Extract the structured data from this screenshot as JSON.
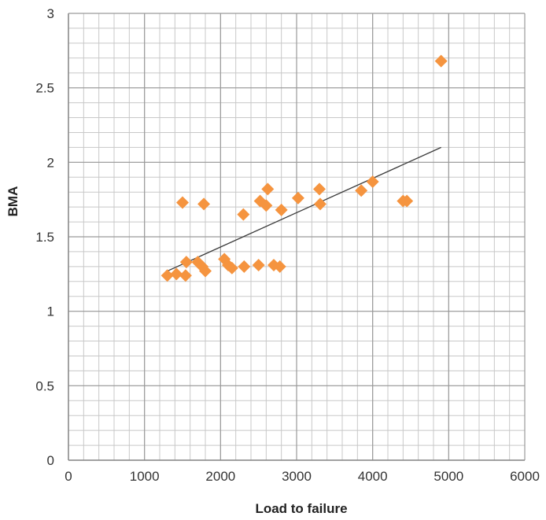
{
  "chart_data": {
    "type": "scatter",
    "title": "",
    "xlabel": "Load to failure",
    "ylabel": "BMA",
    "xlim": [
      0,
      6000
    ],
    "ylim": [
      0,
      3
    ],
    "x_ticks": [
      "0",
      "1000",
      "2000",
      "3000",
      "4000",
      "5000",
      "6000"
    ],
    "y_ticks": [
      "0",
      "0.5",
      "1",
      "1.5",
      "2",
      "2.5",
      "3"
    ],
    "grid": true,
    "legend": "none",
    "marker": "diamond",
    "colors": {
      "points": "#f5943f",
      "trendline": "#3a3a3a",
      "grid": "#c8c8c8"
    },
    "series": [
      {
        "points": [
          [
            1300,
            1.24
          ],
          [
            1420,
            1.25
          ],
          [
            1500,
            1.73
          ],
          [
            1540,
            1.24
          ],
          [
            1550,
            1.33
          ],
          [
            1700,
            1.33
          ],
          [
            1760,
            1.3
          ],
          [
            1780,
            1.72
          ],
          [
            1800,
            1.27
          ],
          [
            2050,
            1.35
          ],
          [
            2100,
            1.31
          ],
          [
            2150,
            1.29
          ],
          [
            2300,
            1.65
          ],
          [
            2310,
            1.3
          ],
          [
            2500,
            1.31
          ],
          [
            2520,
            1.74
          ],
          [
            2600,
            1.71
          ],
          [
            2620,
            1.82
          ],
          [
            2700,
            1.31
          ],
          [
            2780,
            1.3
          ],
          [
            2800,
            1.68
          ],
          [
            3020,
            1.76
          ],
          [
            3300,
            1.82
          ],
          [
            3310,
            1.72
          ],
          [
            3850,
            1.81
          ],
          [
            4000,
            1.87
          ],
          [
            4400,
            1.74
          ],
          [
            4450,
            1.74
          ],
          [
            4900,
            2.68
          ]
        ]
      }
    ],
    "trendline": {
      "x": [
        1300,
        4900
      ],
      "y": [
        1.27,
        2.1
      ]
    }
  }
}
